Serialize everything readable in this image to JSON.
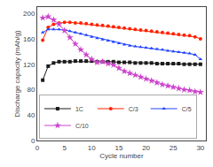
{
  "chart_data": {
    "type": "line",
    "xlabel": "Cycle number",
    "ylabel": "Discharge capacity (mAh/g)",
    "x": [
      1,
      2,
      3,
      4,
      5,
      6,
      7,
      8,
      9,
      10,
      11,
      12,
      13,
      14,
      15,
      16,
      17,
      18,
      19,
      20,
      21,
      22,
      23,
      24,
      25,
      26,
      27,
      28,
      29,
      30
    ],
    "series": [
      {
        "name": "1C",
        "color": "#1a1a1a",
        "marker": "square",
        "values": [
          95,
          117,
          122,
          124,
          124,
          124,
          125,
          125,
          125,
          125,
          124,
          124,
          124,
          124,
          123,
          123,
          123,
          122,
          122,
          122,
          122,
          121,
          121,
          121,
          121,
          121,
          120,
          120,
          120,
          120
        ]
      },
      {
        "name": "C/3",
        "color": "#ff2200",
        "marker": "circle",
        "values": [
          158,
          178,
          183,
          185,
          186,
          186,
          185,
          185,
          184,
          183,
          182,
          181,
          180,
          179,
          178,
          177,
          176,
          175,
          174,
          173,
          172,
          171,
          170,
          169,
          168,
          167,
          166,
          165,
          163,
          160
        ]
      },
      {
        "name": "C/5",
        "color": "#2244ff",
        "marker": "triangle",
        "values": [
          170,
          175,
          175,
          175,
          174,
          172,
          170,
          168,
          166,
          163,
          161,
          159,
          157,
          155,
          153,
          151,
          149,
          148,
          147,
          146,
          145,
          144,
          143,
          141,
          140,
          139,
          138,
          137,
          135,
          128
        ]
      },
      {
        "name": "C/10",
        "color": "#cc44cc",
        "marker": "star",
        "values": [
          193,
          195,
          190,
          183,
          173,
          162,
          152,
          143,
          135,
          128,
          123,
          124,
          121,
          119,
          114,
          109,
          106,
          103,
          100,
          97,
          94,
          91,
          88,
          86,
          84,
          82,
          80,
          79,
          77,
          76
        ]
      }
    ],
    "xlim": [
      0,
      31
    ],
    "ylim": [
      0,
      210
    ],
    "xticks": [
      0,
      5,
      10,
      15,
      20,
      25,
      30
    ],
    "yticks": [
      0,
      40,
      80,
      120,
      160,
      200
    ],
    "legend": "lower left",
    "grid": false
  }
}
